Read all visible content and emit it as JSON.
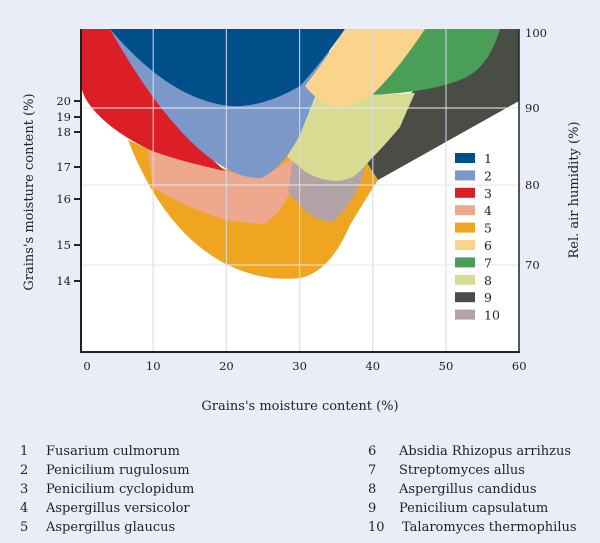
{
  "chart_data": {
    "type": "area",
    "title": "",
    "xlabel": "Grains's moisture content (%)",
    "ylabel_left": "Grains's moisture content (%)",
    "ylabel_right": "Rel. air humidity (%)",
    "xlim": [
      0,
      60
    ],
    "ylim_right": [
      58.6,
      100
    ],
    "x_ticks": [
      "0",
      "10",
      "20",
      "30",
      "40",
      "50",
      "60"
    ],
    "y_ticks_left": [
      "20",
      "19",
      "18",
      "17",
      "16",
      "15",
      "14"
    ],
    "y_ticks_right": [
      "100",
      "90",
      "80",
      "70"
    ],
    "grid": true,
    "legend_position": "right",
    "regions": [
      {
        "id": "1",
        "name": "Fusarium culmorum",
        "color": "#004f8a"
      },
      {
        "id": "2",
        "name": "Penicilium rugulosum",
        "color": "#7b98c9"
      },
      {
        "id": "3",
        "name": "Penicilium cyclopidum",
        "color": "#dc1e26"
      },
      {
        "id": "4",
        "name": "Aspergillus versicolor",
        "color": "#eea88e"
      },
      {
        "id": "5",
        "name": "Aspergillus glaucus",
        "color": "#efa520"
      },
      {
        "id": "6",
        "name": "Absidia Rhizopus arrihzus",
        "color": "#fad48b"
      },
      {
        "id": "7",
        "name": "Streptomyces allus",
        "color": "#4a9e58"
      },
      {
        "id": "8",
        "name": "Aspergillus candidus",
        "color": "#d8dc93"
      },
      {
        "id": "9",
        "name": "Penicilium capsulatum",
        "color": "#4a4d45"
      },
      {
        "id": "10",
        "name": "Talaromyces thermophilus",
        "color": "#b3a2a6"
      }
    ]
  }
}
